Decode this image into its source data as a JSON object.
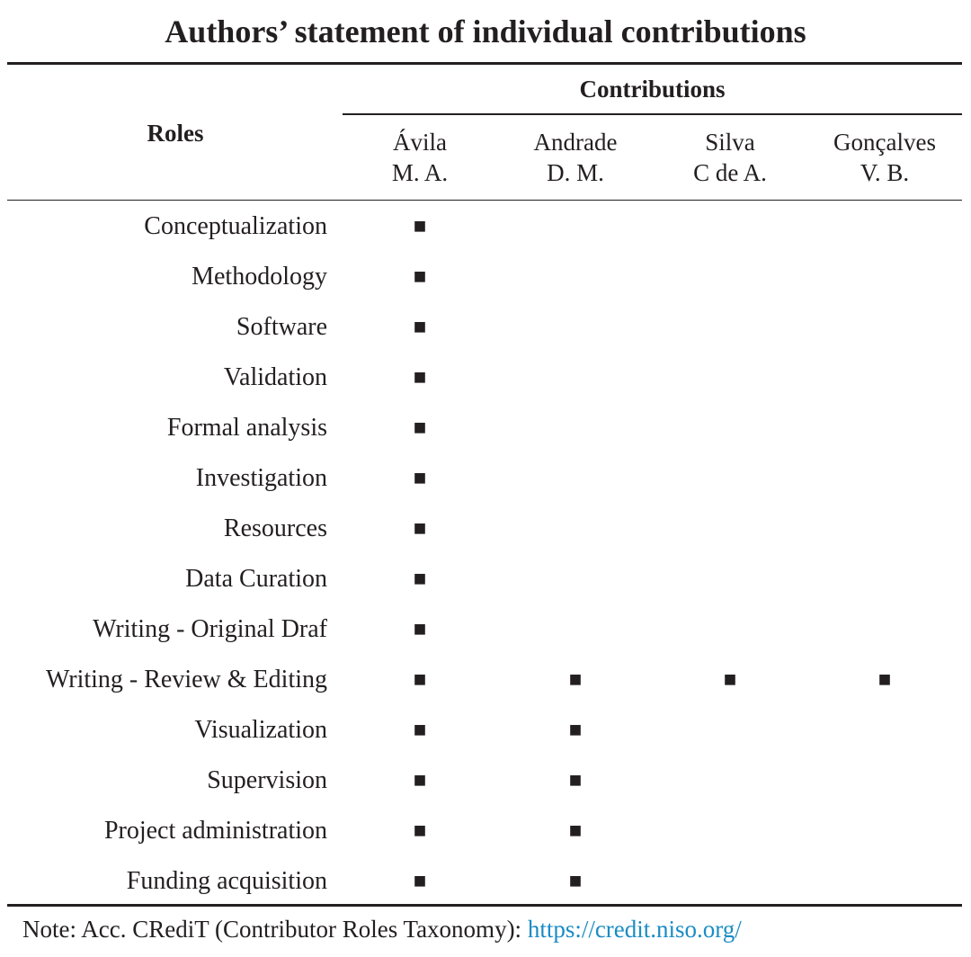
{
  "title": "Authors’ statement of individual contributions",
  "table": {
    "roles_header": "Roles",
    "group_header": "Contributions",
    "columns": [
      [
        "Ávila",
        "M. A."
      ],
      [
        "Andrade",
        "D. M."
      ],
      [
        "Silva",
        "C de A."
      ],
      [
        "Gonçalves",
        "V. B."
      ]
    ],
    "rows": [
      {
        "role": "Conceptualization",
        "cells": [
          "■",
          null,
          null,
          null
        ]
      },
      {
        "role": "Methodology",
        "cells": [
          "■",
          null,
          null,
          null
        ]
      },
      {
        "role": "Software",
        "cells": [
          "■",
          null,
          null,
          null
        ]
      },
      {
        "role": "Validation",
        "cells": [
          "■",
          null,
          null,
          null
        ]
      },
      {
        "role": "Formal analysis",
        "cells": [
          "■",
          null,
          null,
          null
        ]
      },
      {
        "role": "Investigation",
        "cells": [
          "■",
          null,
          null,
          null
        ]
      },
      {
        "role": "Resources",
        "cells": [
          "■",
          null,
          null,
          null
        ]
      },
      {
        "role": "Data Curation",
        "cells": [
          "■",
          null,
          null,
          null
        ]
      },
      {
        "role": "Writing - Original Draf",
        "cells": [
          "■",
          null,
          null,
          null
        ]
      },
      {
        "role": "Writing - Review & Editing",
        "cells": [
          "■",
          "■",
          "■",
          "■"
        ]
      },
      {
        "role": "Visualization",
        "cells": [
          "■",
          "■",
          null,
          null
        ]
      },
      {
        "role": "Supervision",
        "cells": [
          "■",
          "■",
          null,
          null
        ]
      },
      {
        "role": "Project administration",
        "cells": [
          "■",
          "■",
          null,
          null
        ]
      },
      {
        "role": "Funding acquisition",
        "cells": [
          "■",
          "■",
          null,
          null
        ]
      }
    ]
  },
  "note": {
    "text": "Note: Acc. CRediT (Contributor Roles Taxonomy): ",
    "link": "https://credit.niso.org/"
  }
}
